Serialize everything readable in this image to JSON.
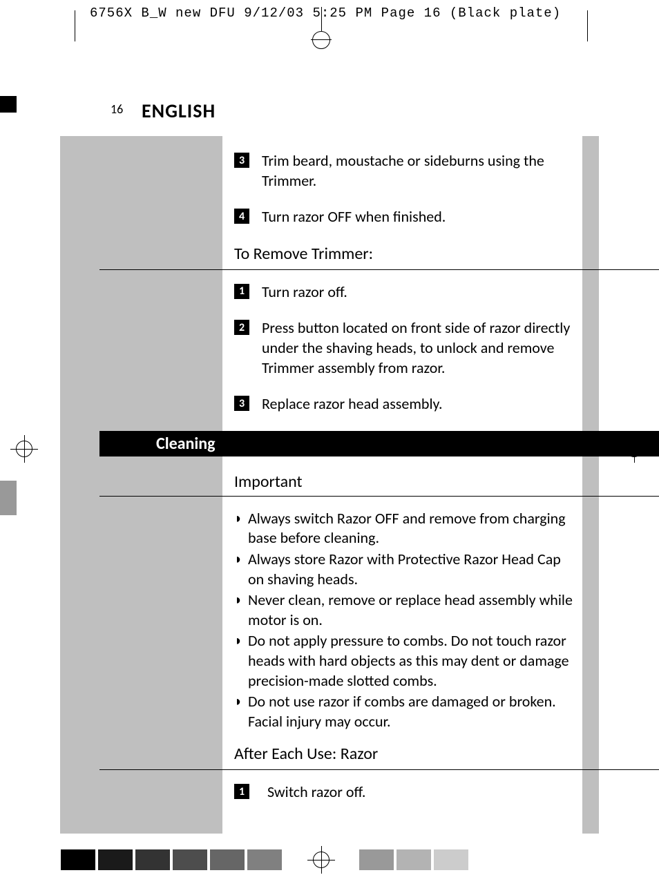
{
  "header": {
    "info": "6756X B_W new DFU  9/12/03  5:25 PM  Page 16     (Black plate)"
  },
  "page": {
    "number": "16",
    "title": "ENGLISH"
  },
  "sections": {
    "trimmer_steps": [
      {
        "num": "3",
        "text": "Trim beard, moustache or sideburns using the Trimmer."
      },
      {
        "num": "4",
        "text": "Turn razor OFF when finished."
      }
    ],
    "remove_trimmer": {
      "title": "To Remove Trimmer:",
      "steps": [
        {
          "num": "1",
          "text": "Turn razor off."
        },
        {
          "num": "2",
          "text": "Press button located on front side of razor directly under the shaving heads, to unlock and remove Trimmer assembly from razor."
        },
        {
          "num": "3",
          "text": "Replace razor head assembly."
        }
      ]
    },
    "cleaning": {
      "banner": "Cleaning",
      "important_title": "Important",
      "bullets": [
        "Always switch Razor OFF and remove from charging base before cleaning.",
        "Always store Razor with Protective Razor Head Cap on shaving heads.",
        "Never clean, remove or replace head assembly while motor is on.",
        "Do not apply pressure to combs. Do not touch razor heads with hard objects as this may dent or damage precision-made slotted combs.",
        "Do not use razor if combs are damaged or broken. Facial injury may occur."
      ],
      "after_use_title": "After Each Use: Razor",
      "after_use_steps": [
        {
          "num": "1",
          "text": "Switch razor off."
        }
      ]
    }
  },
  "colors": {
    "bottom_squares_left": [
      "#000000",
      "#1a1a1a",
      "#333333",
      "#4d4d4d",
      "#666666",
      "#808080"
    ],
    "bottom_squares_right": [
      "#999999",
      "#b3b3b3",
      "#cccccc"
    ]
  }
}
